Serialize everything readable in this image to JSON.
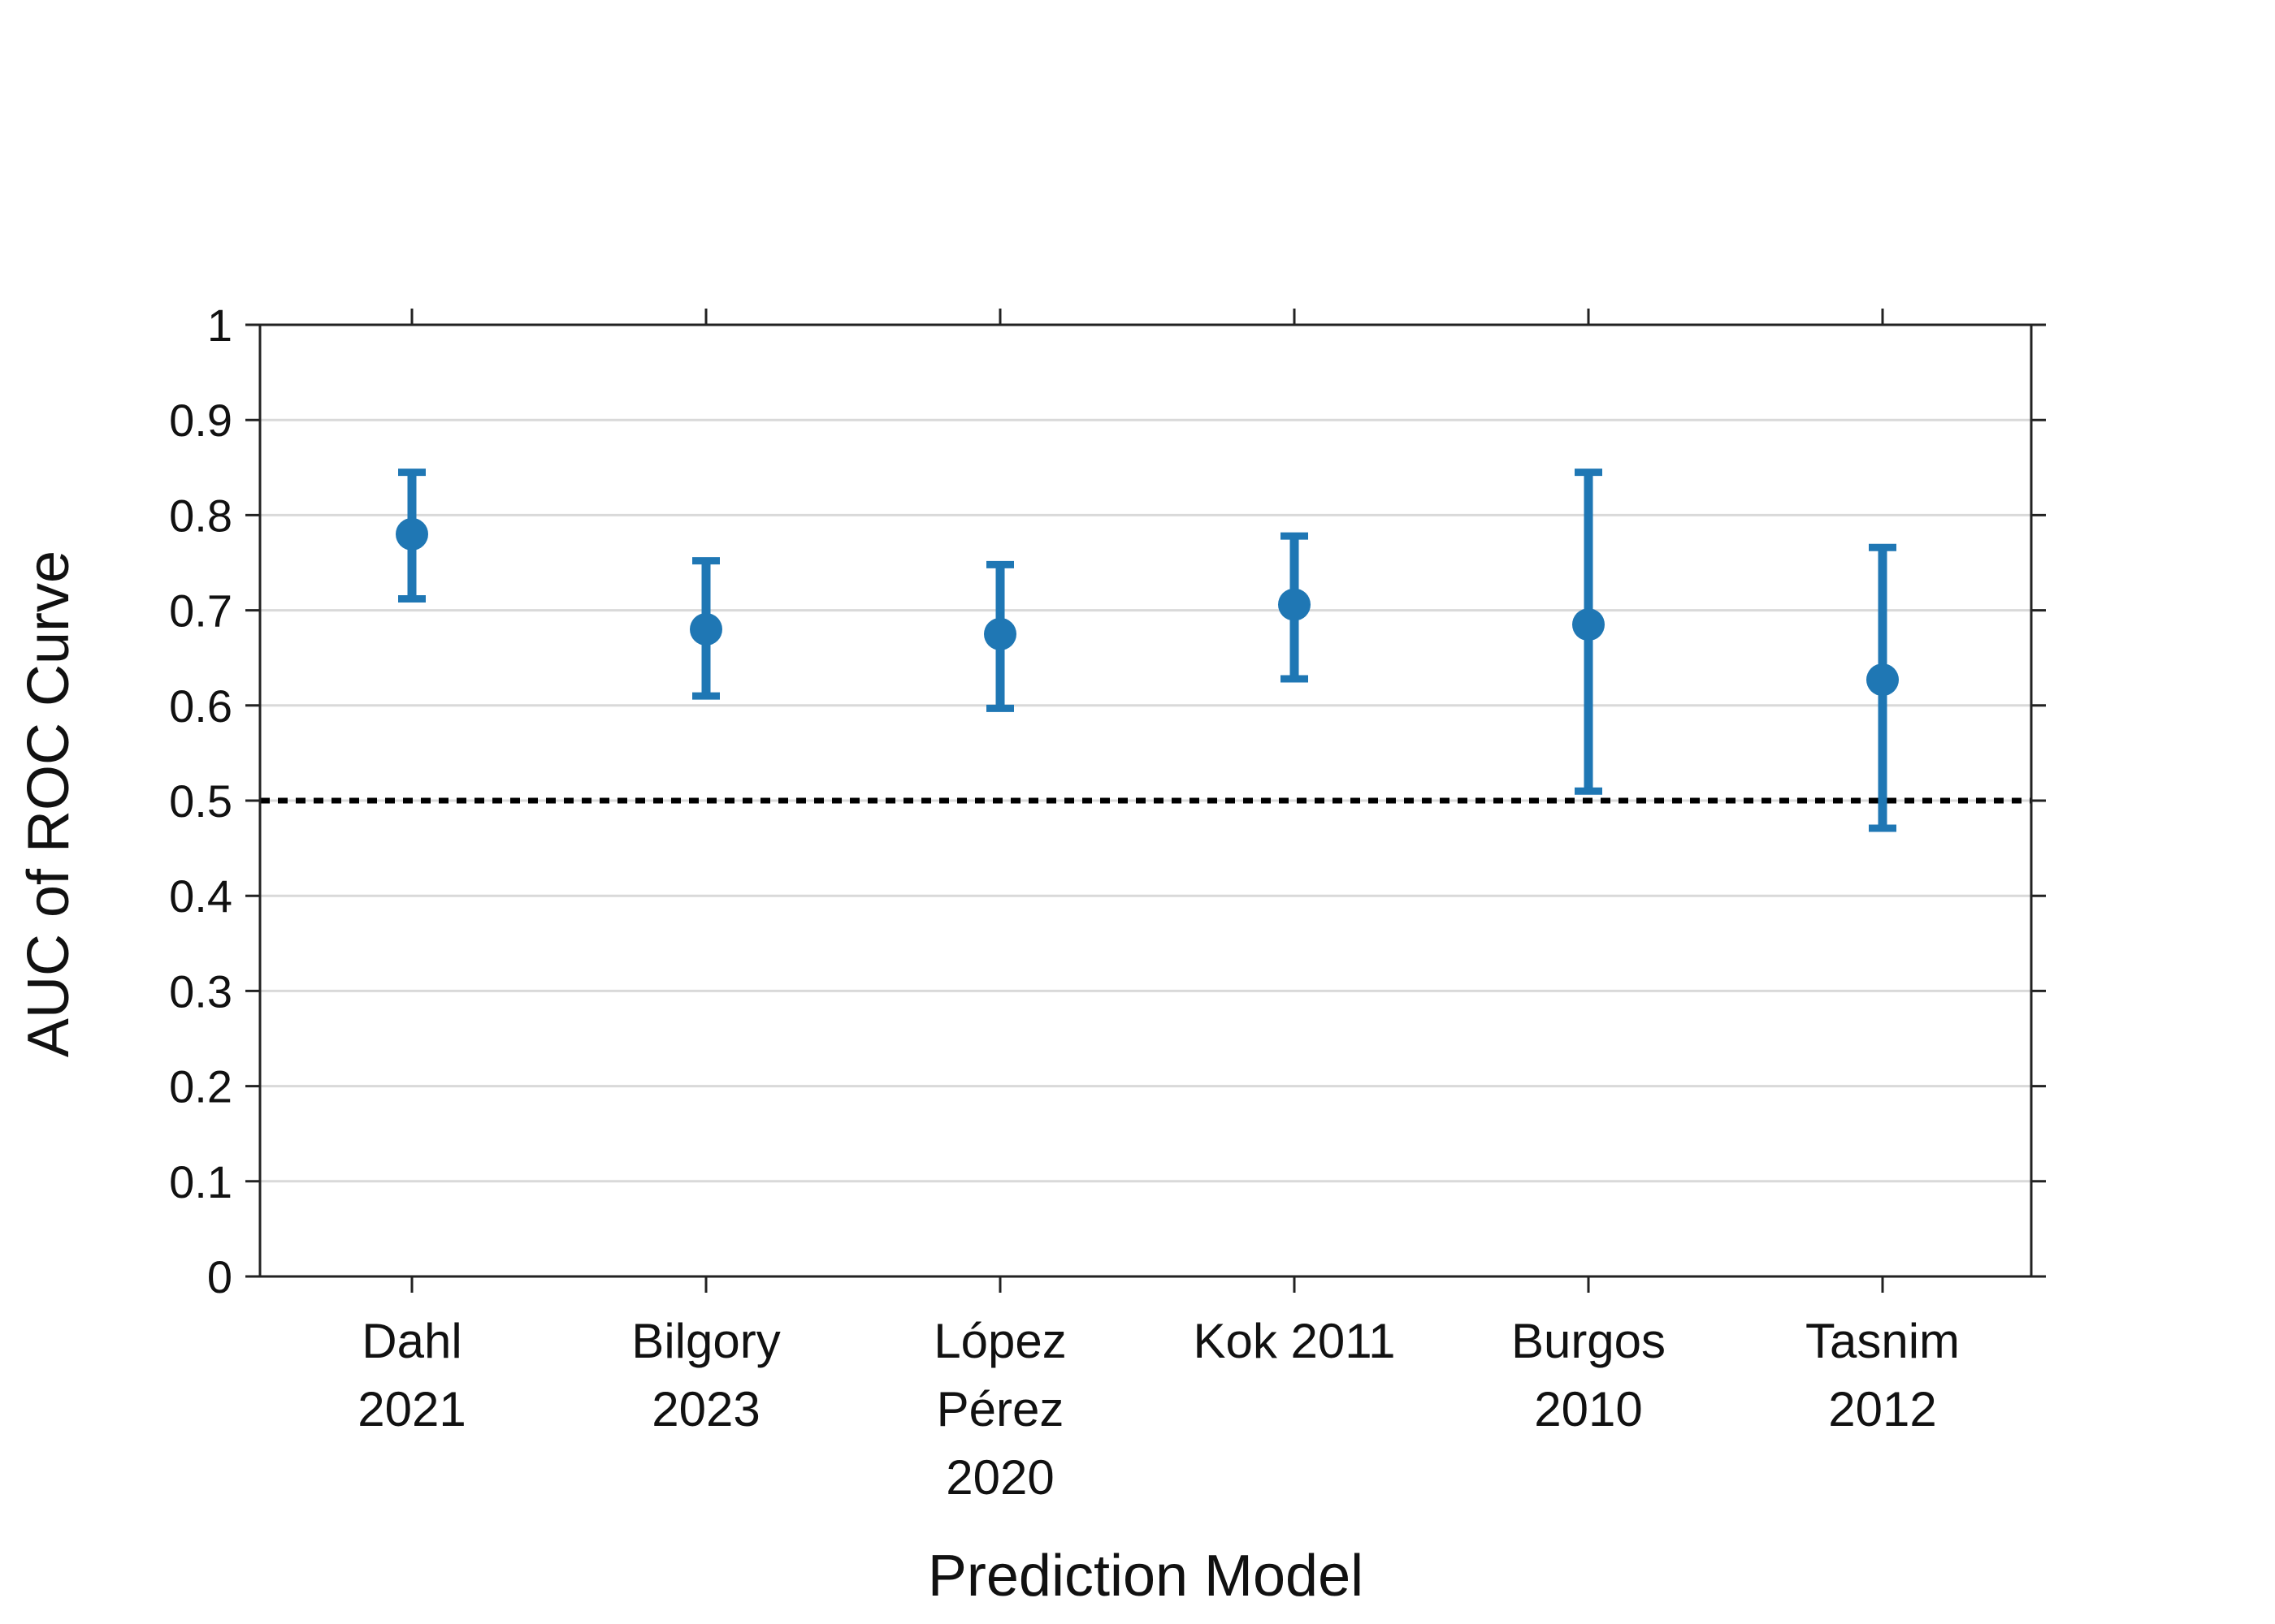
{
  "chart_data": {
    "type": "scatter",
    "title": "",
    "xlabel": "Prediction Model",
    "ylabel": "AUC of ROC Curve",
    "ylim": [
      0,
      1
    ],
    "yticks": [
      "0",
      "0.1",
      "0.2",
      "0.3",
      "0.4",
      "0.5",
      "0.6",
      "0.7",
      "0.8",
      "0.9",
      "1"
    ],
    "grid": "horizontal",
    "reference_line": 0.5,
    "colors": {
      "marker": "#1f77b4",
      "reference_line": "#000000",
      "grid": "#d9d9d9"
    },
    "categories": [
      [
        "Dahl",
        "2021"
      ],
      [
        "Bilgory",
        "2023"
      ],
      [
        "López",
        "Pérez",
        "2020"
      ],
      [
        "Kok 2011"
      ],
      [
        "Burgos",
        "2010"
      ],
      [
        "Tasnim",
        "2012"
      ]
    ],
    "series": [
      {
        "points": [
          {
            "y": 0.78,
            "lower": 0.712,
            "upper": 0.845
          },
          {
            "y": 0.68,
            "lower": 0.61,
            "upper": 0.752
          },
          {
            "y": 0.675,
            "lower": 0.597,
            "upper": 0.748
          },
          {
            "y": 0.706,
            "lower": 0.628,
            "upper": 0.778
          },
          {
            "y": 0.685,
            "lower": 0.51,
            "upper": 0.845
          },
          {
            "y": 0.627,
            "lower": 0.471,
            "upper": 0.766
          }
        ]
      }
    ]
  }
}
